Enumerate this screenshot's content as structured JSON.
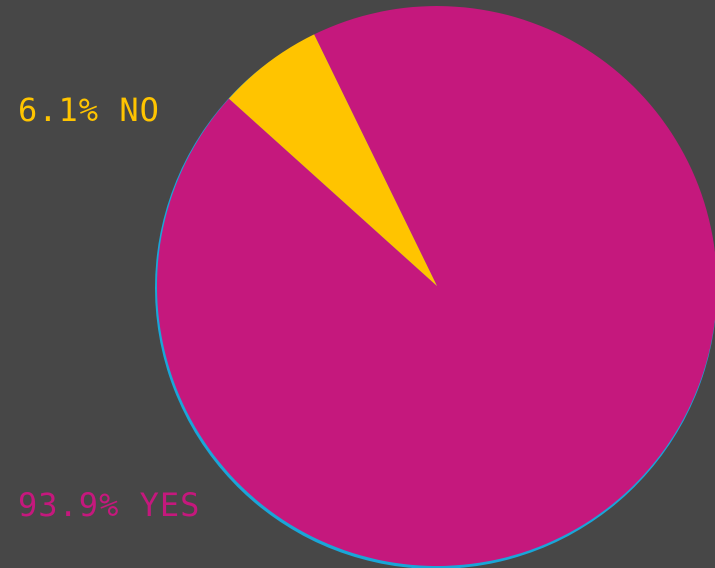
{
  "chart_data": {
    "type": "pie",
    "slices": [
      {
        "label": "NO",
        "value": 6.1,
        "display": "6.1% NO",
        "color": "#FFC400"
      },
      {
        "label": "YES",
        "value": 93.9,
        "display": "93.9% YES",
        "color": "#C5187D"
      }
    ],
    "edge_color": "#1AA6D8",
    "background": "#474747"
  }
}
